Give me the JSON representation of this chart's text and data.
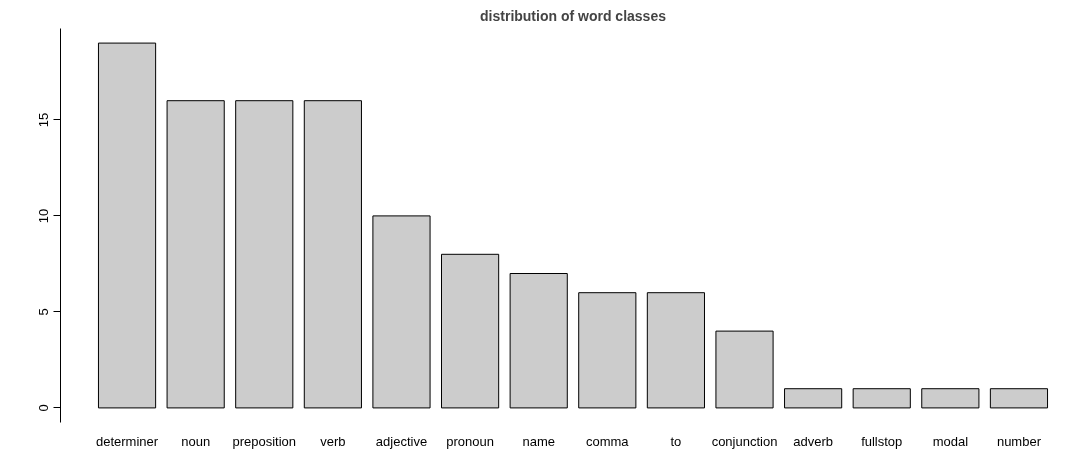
{
  "chart_data": {
    "type": "bar",
    "title": "distribution of word classes",
    "categories": [
      "determiner",
      "noun",
      "preposition",
      "verb",
      "adjective",
      "pronoun",
      "name",
      "comma",
      "to",
      "conjunction",
      "adverb",
      "fullstop",
      "modal",
      "number"
    ],
    "values": [
      19,
      16,
      16,
      16,
      10,
      8,
      7,
      6,
      6,
      4,
      1,
      1,
      1,
      1
    ],
    "color": "#cccccc",
    "ylim": [
      0,
      19
    ],
    "yticks": [
      0,
      5,
      10,
      15
    ],
    "grid": false
  }
}
